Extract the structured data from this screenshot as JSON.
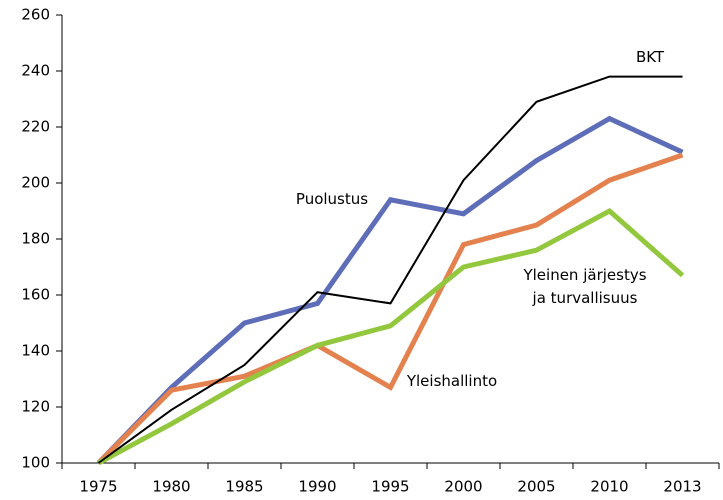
{
  "chart_data": {
    "type": "line",
    "categories": [
      "1975",
      "1980",
      "1985",
      "1990",
      "1995",
      "2000",
      "2005",
      "2010",
      "2013"
    ],
    "series": [
      {
        "name": "Puolustus",
        "color": "#5e6db8",
        "values": [
          100,
          127,
          150,
          157,
          194,
          189,
          208,
          223,
          211
        ]
      },
      {
        "name": "Yleishallinto",
        "color": "#e3814f",
        "values": [
          100,
          126,
          131,
          142,
          127,
          178,
          185,
          201,
          210
        ]
      },
      {
        "name": "Yleinen järjestys ja turvallisuus",
        "color": "#93c83e",
        "values": [
          100,
          114,
          129,
          142,
          149,
          170,
          176,
          190,
          167
        ]
      },
      {
        "name": "BKT",
        "color": "#000000",
        "values": [
          100,
          119,
          135,
          161,
          157,
          201,
          229,
          238,
          238
        ]
      }
    ],
    "ylim": [
      100,
      260
    ],
    "yticks": [
      100,
      120,
      140,
      160,
      180,
      200,
      220,
      240,
      260
    ],
    "grid": false
  }
}
